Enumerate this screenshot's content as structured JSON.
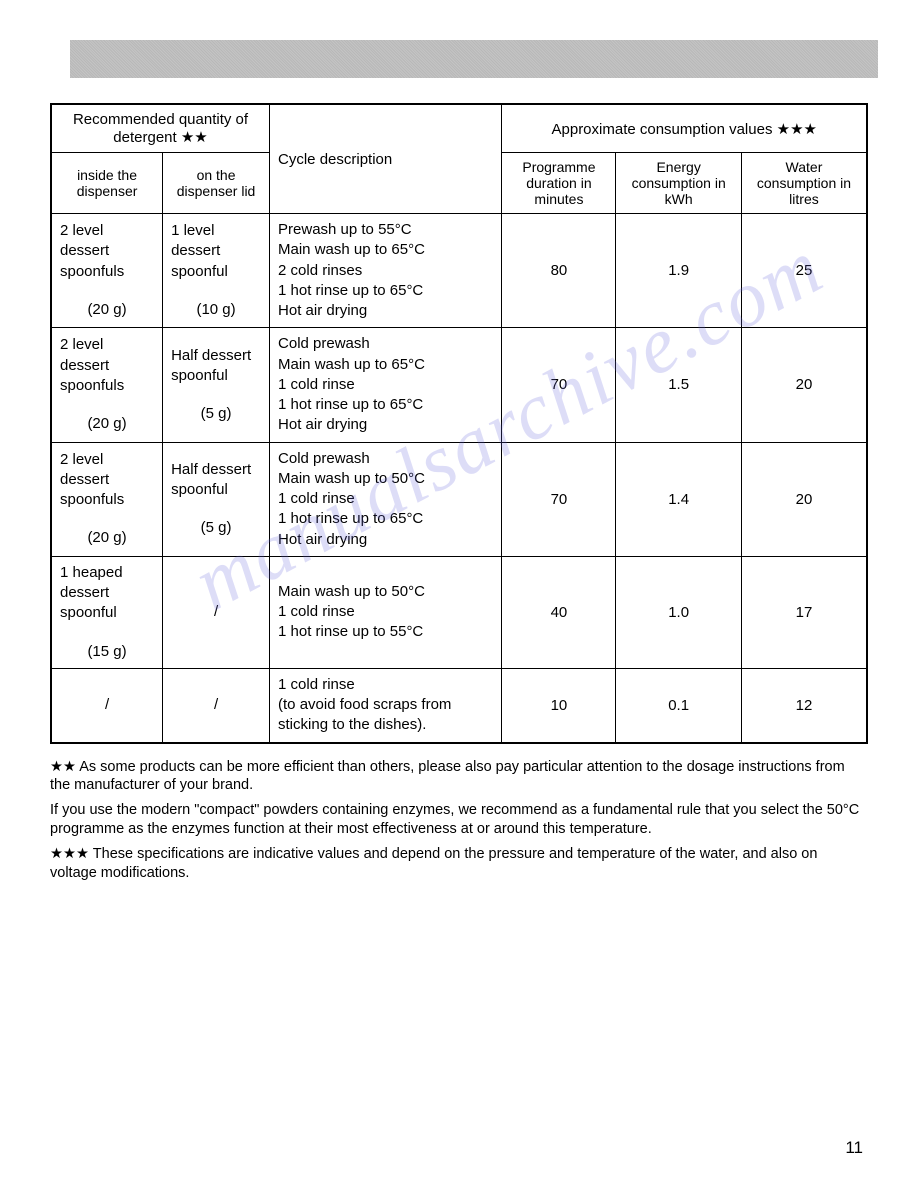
{
  "watermark": "manualsarchive.com",
  "page_number": "11",
  "table": {
    "header_group_detergent": "Recommended quantity of detergent ★★",
    "header_group_consumption": "Approximate consumption values ★★★",
    "header_inside_dispenser": "inside the dispenser",
    "header_on_lid": "on the dispenser lid",
    "header_cycle": "Cycle description",
    "header_duration": "Programme duration in minutes",
    "header_energy": "Energy consumption in kWh",
    "header_water": "Water consumption in litres",
    "rows": [
      {
        "inside": "2 level dessert spoonfuls",
        "inside_weight": "(20 g)",
        "lid": "1 level dessert spoonful",
        "lid_weight": "(10 g)",
        "cycle": "Prewash up to 55°C\nMain wash up to 65°C\n2 cold rinses\n1 hot rinse up to 65°C\nHot air drying",
        "duration": "80",
        "energy": "1.9",
        "water": "25"
      },
      {
        "inside": "2 level dessert spoonfuls",
        "inside_weight": "(20 g)",
        "lid": "Half dessert spoonful",
        "lid_weight": "(5 g)",
        "cycle": "Cold prewash\nMain wash up to 65°C\n1 cold rinse\n1 hot rinse up to 65°C\nHot air drying",
        "duration": "70",
        "energy": "1.5",
        "water": "20"
      },
      {
        "inside": "2 level dessert spoonfuls",
        "inside_weight": "(20 g)",
        "lid": "Half dessert spoonful",
        "lid_weight": "(5 g)",
        "cycle": "Cold prewash\nMain wash up to 50°C\n1 cold rinse\n1 hot rinse up to 65°C\nHot air drying",
        "duration": "70",
        "energy": "1.4",
        "water": "20"
      },
      {
        "inside": "1 heaped dessert spoonful",
        "inside_weight": "(15 g)",
        "lid": "/",
        "lid_weight": "",
        "cycle": "Main wash up to 50°C\n1 cold rinse\n1 hot rinse up to 55°C",
        "duration": "40",
        "energy": "1.0",
        "water": "17"
      },
      {
        "inside": "/",
        "inside_weight": "",
        "lid": "/",
        "lid_weight": "",
        "cycle": "1 cold rinse\n(to avoid food scraps from sticking to the dishes).",
        "duration": "10",
        "energy": "0.1",
        "water": "12"
      }
    ]
  },
  "footnotes": {
    "note1_stars": "★★",
    "note1_text": " As some products can be more efficient than others, please also pay particular attention to the dosage instructions from the manufacturer of your brand.",
    "note1b": "If you use the modern \"compact\" powders containing enzymes, we recommend as a fundamental rule that you select the 50°C programme as the enzymes function at their most effectiveness at or around this temperature.",
    "note2_stars": "★★★",
    "note2_text": " These specifications are indicative values and depend on the pressure and temperature of the water, and also on voltage modifications."
  }
}
